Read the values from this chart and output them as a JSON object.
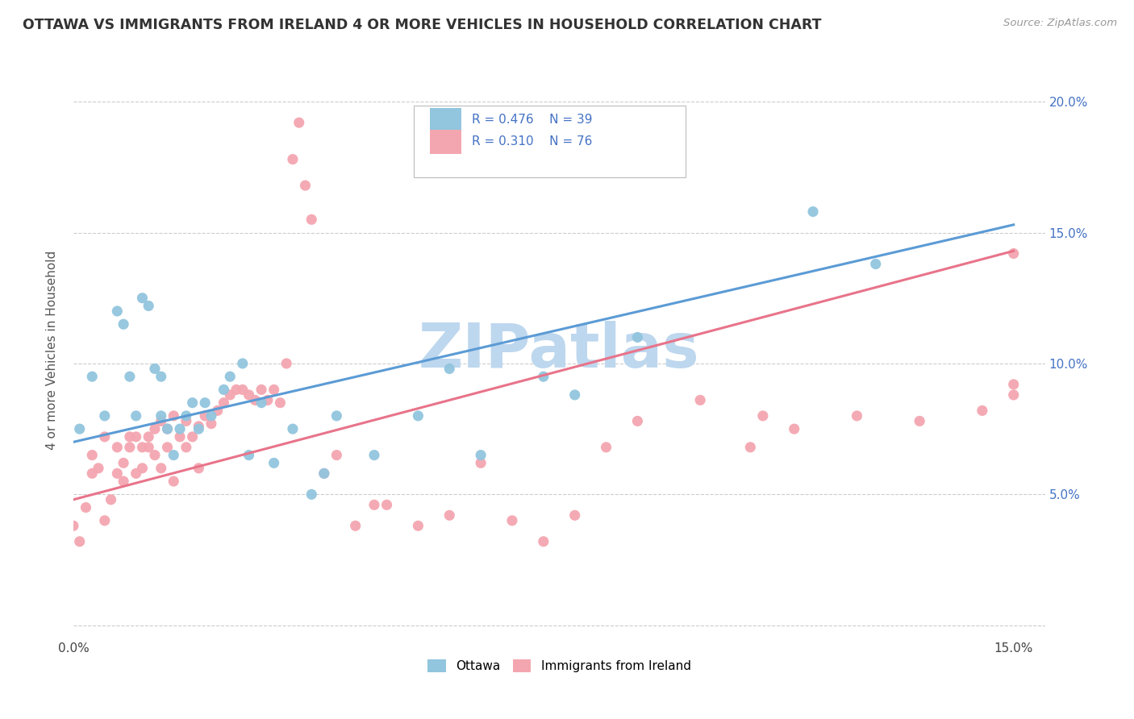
{
  "title": "OTTAWA VS IMMIGRANTS FROM IRELAND 4 OR MORE VEHICLES IN HOUSEHOLD CORRELATION CHART",
  "source": "Source: ZipAtlas.com",
  "ylabel": "4 or more Vehicles in Household",
  "xlim": [
    0.0,
    0.155
  ],
  "ylim": [
    -0.005,
    0.215
  ],
  "xtick_positions": [
    0.0,
    0.03,
    0.06,
    0.09,
    0.12,
    0.15
  ],
  "xtick_labels": [
    "0.0%",
    "",
    "",
    "",
    "",
    "15.0%"
  ],
  "ytick_positions": [
    0.0,
    0.05,
    0.1,
    0.15,
    0.2
  ],
  "ytick_labels": [
    "",
    "5.0%",
    "10.0%",
    "15.0%",
    "20.0%"
  ],
  "legend_ottawa_R": "R = 0.476",
  "legend_ottawa_N": "N = 39",
  "legend_ireland_R": "R = 0.310",
  "legend_ireland_N": "N = 76",
  "ottawa_color": "#92C5DE",
  "ireland_color": "#F4A6B0",
  "ottawa_line_color": "#5B9BD5",
  "ireland_line_color": "#E8748A",
  "legend_text_color": "#4472C4",
  "watermark": "ZIPatlas",
  "watermark_color": "#BDD7EE",
  "ottawa_line_x0": 0.0,
  "ottawa_line_y0": 0.07,
  "ottawa_line_x1": 0.15,
  "ottawa_line_y1": 0.153,
  "ireland_line_x0": 0.0,
  "ireland_line_y0": 0.048,
  "ireland_line_x1": 0.15,
  "ireland_line_y1": 0.143,
  "ottawa_x": [
    0.001,
    0.003,
    0.005,
    0.007,
    0.008,
    0.009,
    0.01,
    0.011,
    0.012,
    0.013,
    0.014,
    0.014,
    0.015,
    0.016,
    0.017,
    0.018,
    0.019,
    0.02,
    0.021,
    0.022,
    0.024,
    0.025,
    0.027,
    0.028,
    0.03,
    0.032,
    0.035,
    0.038,
    0.04,
    0.042,
    0.048,
    0.055,
    0.06,
    0.065,
    0.075,
    0.08,
    0.09,
    0.118,
    0.128
  ],
  "ottawa_y": [
    0.075,
    0.095,
    0.08,
    0.12,
    0.115,
    0.095,
    0.08,
    0.125,
    0.122,
    0.098,
    0.095,
    0.08,
    0.075,
    0.065,
    0.075,
    0.08,
    0.085,
    0.075,
    0.085,
    0.08,
    0.09,
    0.095,
    0.1,
    0.065,
    0.085,
    0.062,
    0.075,
    0.05,
    0.058,
    0.08,
    0.065,
    0.08,
    0.098,
    0.065,
    0.095,
    0.088,
    0.11,
    0.158,
    0.138
  ],
  "ireland_x": [
    0.0,
    0.001,
    0.002,
    0.003,
    0.003,
    0.004,
    0.005,
    0.005,
    0.006,
    0.007,
    0.007,
    0.008,
    0.008,
    0.009,
    0.009,
    0.01,
    0.01,
    0.011,
    0.011,
    0.012,
    0.012,
    0.013,
    0.013,
    0.014,
    0.014,
    0.015,
    0.015,
    0.016,
    0.016,
    0.017,
    0.018,
    0.018,
    0.019,
    0.02,
    0.02,
    0.021,
    0.022,
    0.023,
    0.024,
    0.025,
    0.026,
    0.027,
    0.028,
    0.029,
    0.03,
    0.031,
    0.032,
    0.033,
    0.034,
    0.035,
    0.036,
    0.037,
    0.038,
    0.04,
    0.042,
    0.045,
    0.048,
    0.05,
    0.055,
    0.06,
    0.065,
    0.07,
    0.075,
    0.08,
    0.085,
    0.09,
    0.1,
    0.108,
    0.11,
    0.115,
    0.125,
    0.135,
    0.145,
    0.15,
    0.15,
    0.15
  ],
  "ireland_y": [
    0.038,
    0.032,
    0.045,
    0.058,
    0.065,
    0.06,
    0.04,
    0.072,
    0.048,
    0.068,
    0.058,
    0.062,
    0.055,
    0.068,
    0.072,
    0.058,
    0.072,
    0.06,
    0.068,
    0.068,
    0.072,
    0.075,
    0.065,
    0.078,
    0.06,
    0.068,
    0.075,
    0.08,
    0.055,
    0.072,
    0.068,
    0.078,
    0.072,
    0.076,
    0.06,
    0.08,
    0.077,
    0.082,
    0.085,
    0.088,
    0.09,
    0.09,
    0.088,
    0.086,
    0.09,
    0.086,
    0.09,
    0.085,
    0.1,
    0.178,
    0.192,
    0.168,
    0.155,
    0.058,
    0.065,
    0.038,
    0.046,
    0.046,
    0.038,
    0.042,
    0.062,
    0.04,
    0.032,
    0.042,
    0.068,
    0.078,
    0.086,
    0.068,
    0.08,
    0.075,
    0.08,
    0.078,
    0.082,
    0.088,
    0.092,
    0.142
  ]
}
